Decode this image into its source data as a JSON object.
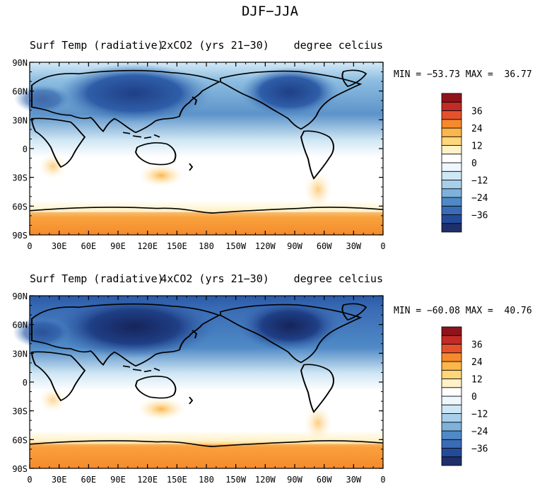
{
  "figure": {
    "title": "DJF−JJA"
  },
  "panels": [
    {
      "title_left": "Surf Temp (radiative)",
      "title_center": "2xCO2 (yrs 21−30)",
      "units": "degree celcius",
      "stats": "MIN = −53.73 MAX =  36.77",
      "min": -53.73,
      "max": 36.77
    },
    {
      "title_left": "Surf Temp (radiative)",
      "title_center": "4xCO2 (yrs 21−30)",
      "units": "degree celcius",
      "stats": "MIN = −60.08 MAX =  40.76",
      "min": -60.08,
      "max": 40.76
    }
  ],
  "map": {
    "projection": "cylindrical-equidistant",
    "central_longitude": 180,
    "lat_range": [
      -90,
      90
    ],
    "lon_range": [
      0,
      360
    ],
    "lat_ticks": [
      "90N",
      "60N",
      "30N",
      "0",
      "30S",
      "60S",
      "90S"
    ],
    "lon_ticks": [
      "0",
      "30E",
      "60E",
      "90E",
      "120E",
      "150E",
      "180",
      "150W",
      "120W",
      "90W",
      "60W",
      "30W",
      "0"
    ],
    "coastlines": true
  },
  "colorbar": {
    "levels": [
      -42,
      -36,
      -30,
      -24,
      -18,
      -12,
      -6,
      0,
      6,
      12,
      18,
      24,
      30,
      36,
      42
    ],
    "labels": [
      "36",
      "24",
      "12",
      "0",
      "−12",
      "−24",
      "−36"
    ],
    "colors": [
      "#1f2f6b",
      "#244b9a",
      "#3a6cb5",
      "#4f8ac6",
      "#7eb1dc",
      "#a8cfea",
      "#cfe6f4",
      "#eef7fd",
      "#ffffff",
      "#fff2c8",
      "#ffd77a",
      "#fcb64a",
      "#f58a2d",
      "#e5512b",
      "#c42a26",
      "#8e1419"
    ],
    "color_order": "bottom-to-top"
  }
}
